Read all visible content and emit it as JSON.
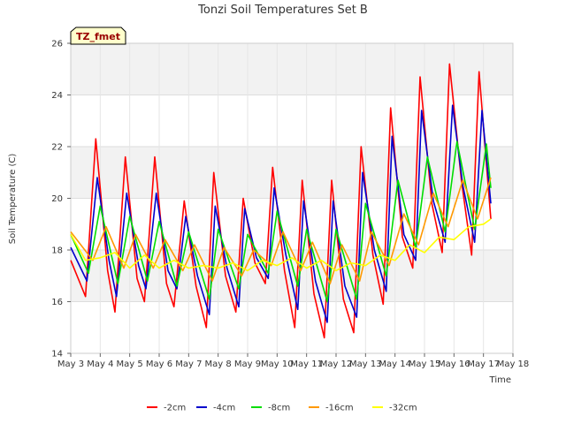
{
  "chart_data": {
    "type": "line",
    "title": "Tonzi Soil Temperatures Set B",
    "xlabel": "Time",
    "ylabel": "Soil Temperature (C)",
    "badge": "TZ_fmet",
    "xlim": [
      3,
      18
    ],
    "ylim": [
      14,
      26
    ],
    "x_ticks": [
      3,
      4,
      5,
      6,
      7,
      8,
      9,
      10,
      11,
      12,
      13,
      14,
      15,
      16,
      17,
      18
    ],
    "x_tick_labels": [
      "May 3",
      "May 4",
      "May 5",
      "May 6",
      "May 7",
      "May 8",
      "May 9",
      "May 10",
      "May 11",
      "May 12",
      "May 13",
      "May 14",
      "May 15",
      "May 16",
      "May 17",
      "May 18"
    ],
    "y_ticks": [
      14,
      16,
      18,
      20,
      22,
      24,
      26
    ],
    "y_tick_labels": [
      "14",
      "16",
      "18",
      "20",
      "22",
      "24",
      "26"
    ],
    "grid": true,
    "legend_position": "bottom",
    "series": [
      {
        "name": "-2cm",
        "color": "#ff0000",
        "x": [
          3.0,
          3.5,
          3.85,
          4.25,
          4.5,
          4.85,
          5.25,
          5.5,
          5.85,
          6.25,
          6.5,
          6.85,
          7.25,
          7.6,
          7.85,
          8.25,
          8.6,
          8.85,
          9.25,
          9.6,
          9.85,
          10.25,
          10.6,
          10.85,
          11.25,
          11.6,
          11.85,
          12.25,
          12.6,
          12.85,
          13.25,
          13.6,
          13.85,
          14.25,
          14.6,
          14.85,
          15.25,
          15.6,
          15.85,
          16.25,
          16.6,
          16.85,
          17.25
        ],
        "y": [
          17.6,
          16.2,
          22.3,
          17.2,
          15.6,
          21.6,
          16.9,
          16.0,
          21.6,
          16.7,
          15.8,
          19.9,
          16.6,
          15.0,
          21.0,
          17.0,
          15.6,
          20.0,
          17.5,
          16.7,
          21.2,
          17.2,
          15.0,
          20.7,
          16.3,
          14.6,
          20.7,
          16.1,
          14.8,
          22.0,
          17.8,
          15.9,
          23.5,
          18.5,
          17.3,
          24.7,
          19.8,
          17.9,
          25.2,
          20.7,
          17.8,
          24.9,
          19.2
        ]
      },
      {
        "name": "-4cm",
        "color": "#0000cc",
        "x": [
          3.0,
          3.55,
          3.9,
          4.3,
          4.55,
          4.9,
          5.3,
          5.55,
          5.9,
          6.3,
          6.6,
          6.9,
          7.3,
          7.7,
          7.9,
          8.3,
          8.7,
          8.9,
          9.3,
          9.7,
          9.9,
          10.3,
          10.7,
          10.9,
          11.3,
          11.7,
          11.9,
          12.3,
          12.7,
          12.9,
          13.3,
          13.7,
          13.9,
          14.3,
          14.7,
          14.9,
          15.3,
          15.7,
          15.95,
          16.3,
          16.7,
          16.95,
          17.25
        ],
        "y": [
          18.1,
          16.8,
          20.8,
          17.6,
          16.2,
          20.2,
          17.4,
          16.5,
          20.2,
          17.2,
          16.5,
          19.3,
          17.0,
          15.5,
          19.7,
          17.3,
          15.8,
          19.6,
          17.7,
          16.9,
          20.4,
          17.8,
          15.7,
          19.9,
          16.8,
          15.2,
          19.9,
          16.6,
          15.4,
          21.0,
          18.0,
          16.4,
          22.4,
          18.6,
          17.6,
          23.4,
          19.9,
          18.3,
          23.6,
          20.5,
          18.3,
          23.4,
          19.8
        ]
      },
      {
        "name": "-8cm",
        "color": "#00dd00",
        "x": [
          3.0,
          3.6,
          4.0,
          4.6,
          5.0,
          5.6,
          6.0,
          6.6,
          7.0,
          7.7,
          8.0,
          8.7,
          9.0,
          9.7,
          10.0,
          10.7,
          11.0,
          11.7,
          12.0,
          12.7,
          13.0,
          13.7,
          14.1,
          14.7,
          15.1,
          15.7,
          16.1,
          16.7,
          17.1,
          17.25
        ],
        "y": [
          18.6,
          17.1,
          19.7,
          16.7,
          19.3,
          16.8,
          19.1,
          16.6,
          18.7,
          16.1,
          18.8,
          16.5,
          18.6,
          17.1,
          19.5,
          16.6,
          18.8,
          16.0,
          18.8,
          16.1,
          19.8,
          17.0,
          20.7,
          18.1,
          21.6,
          18.7,
          22.2,
          18.8,
          22.1,
          20.4
        ]
      },
      {
        "name": "-16cm",
        "color": "#ff9900",
        "x": [
          3.0,
          3.75,
          4.2,
          4.8,
          5.2,
          5.8,
          6.2,
          6.8,
          7.2,
          7.8,
          8.2,
          8.8,
          9.2,
          9.8,
          10.2,
          10.8,
          11.2,
          11.8,
          12.2,
          12.8,
          13.2,
          13.8,
          14.3,
          14.8,
          15.3,
          15.8,
          16.3,
          16.8,
          17.25
        ],
        "y": [
          18.7,
          17.6,
          18.9,
          17.3,
          18.6,
          17.3,
          18.4,
          17.2,
          18.2,
          16.8,
          18.1,
          17.0,
          18.0,
          17.4,
          18.7,
          17.2,
          18.3,
          16.7,
          18.2,
          16.8,
          18.7,
          17.4,
          19.4,
          18.2,
          20.2,
          18.9,
          20.7,
          19.2,
          20.8
        ]
      },
      {
        "name": "-32cm",
        "color": "#ffff00",
        "x": [
          3.0,
          3.5,
          4.0,
          4.5,
          5.0,
          5.5,
          6.0,
          6.5,
          7.0,
          7.5,
          8.0,
          8.5,
          9.0,
          9.5,
          10.0,
          10.5,
          11.0,
          11.5,
          12.0,
          12.5,
          13.0,
          13.5,
          14.0,
          14.5,
          15.0,
          15.5,
          16.0,
          16.5,
          17.0,
          17.25
        ],
        "y": [
          18.6,
          17.6,
          17.7,
          17.9,
          17.3,
          17.8,
          17.3,
          17.6,
          17.3,
          17.4,
          17.3,
          17.5,
          17.2,
          17.6,
          17.4,
          17.7,
          17.3,
          17.6,
          17.2,
          17.5,
          17.4,
          17.8,
          17.6,
          18.2,
          17.9,
          18.5,
          18.4,
          18.9,
          19.0,
          19.2
        ]
      }
    ]
  }
}
